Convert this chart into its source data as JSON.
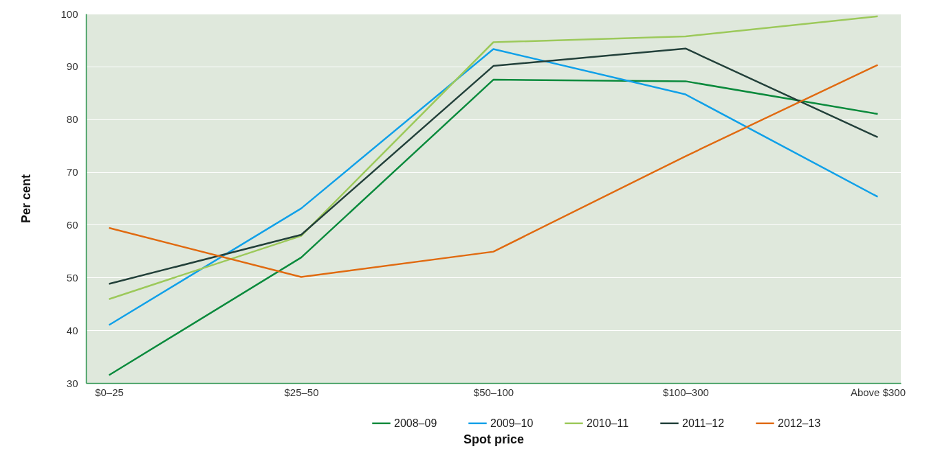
{
  "chart_data": {
    "type": "line",
    "xlabel": "Spot price",
    "ylabel": "Per cent",
    "categories": [
      "$0–25",
      "$25–50",
      "$50–100",
      "$100–300",
      "Above $300"
    ],
    "series": [
      {
        "name": "2008–09",
        "color": "#0a8a3c",
        "values": [
          31.5,
          53.8,
          87.5,
          87.2,
          81.0
        ]
      },
      {
        "name": "2009–10",
        "color": "#10a0e8",
        "values": [
          41.0,
          63.1,
          93.3,
          84.7,
          65.3
        ]
      },
      {
        "name": "2010–11",
        "color": "#9cc95a",
        "values": [
          45.9,
          57.9,
          94.6,
          95.7,
          99.5
        ]
      },
      {
        "name": "2011–12",
        "color": "#22403a",
        "values": [
          48.8,
          58.1,
          90.1,
          93.4,
          76.6
        ]
      },
      {
        "name": "2012–13",
        "color": "#e06a10",
        "values": [
          59.4,
          50.1,
          54.9,
          73.0,
          90.3
        ]
      }
    ],
    "ylim": [
      30,
      100
    ],
    "yticks": [
      30,
      40,
      50,
      60,
      70,
      80,
      90,
      100
    ],
    "grid": "y",
    "legend": "bottom",
    "marker": "none",
    "line_style": "solid"
  }
}
